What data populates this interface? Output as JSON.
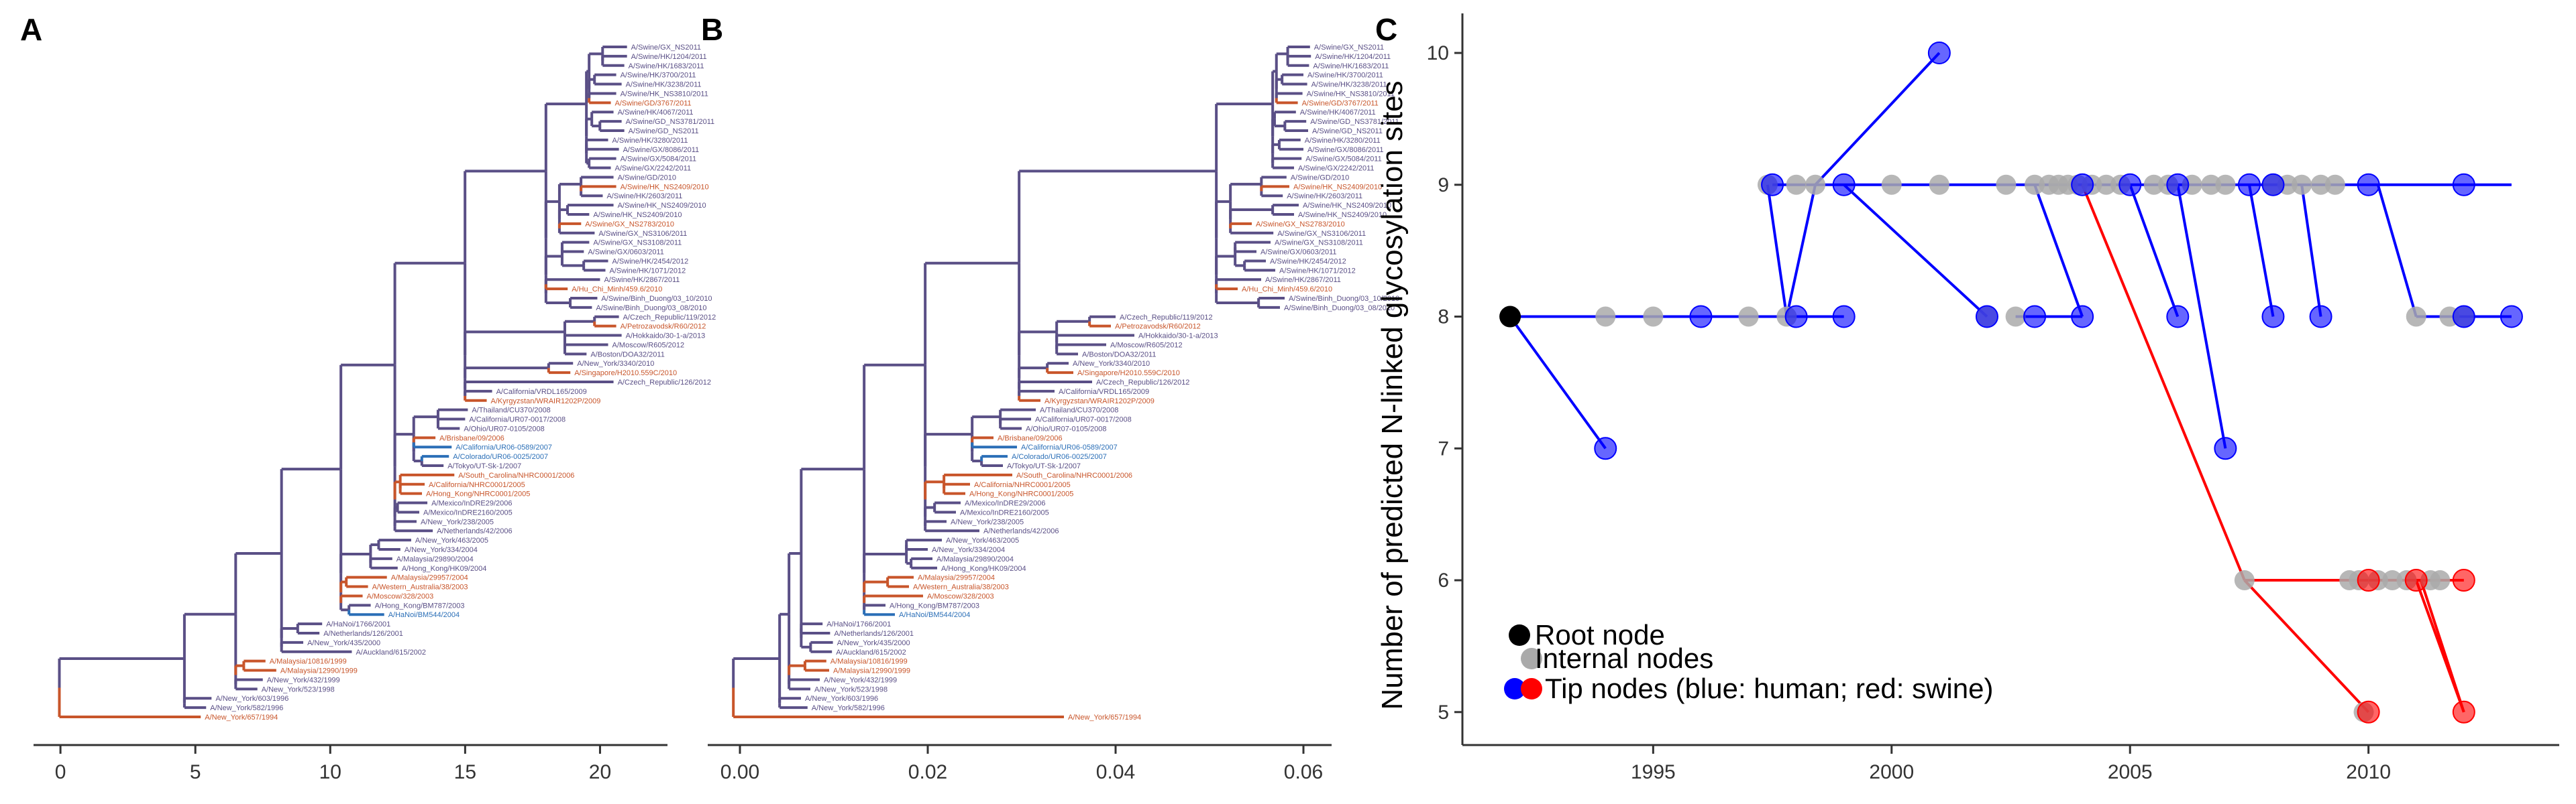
{
  "colors": {
    "orange": "#c8552a",
    "purple": "#5a4f86",
    "blue": "#2b6fb7",
    "root": "#000000",
    "internal": "#aaaaaa",
    "human": "#0000ff",
    "swine": "#ff0000",
    "edge_human": "#0000ff",
    "edge_swine": "#ff0000"
  },
  "panels": {
    "a": {
      "letter": "A",
      "x_ticks": [
        0,
        5,
        10,
        15,
        20
      ],
      "x_range": [
        -0.5,
        22.5
      ]
    },
    "b": {
      "letter": "B",
      "x_ticks": [
        "0.00",
        "0.02",
        "0.04",
        "0.06"
      ],
      "x_range": [
        -0.002,
        0.063
      ]
    },
    "c": {
      "letter": "C"
    }
  },
  "tree": {
    "tips": [
      {
        "label": "A/New_York/657/1994",
        "color": "orange",
        "a_x": 5.2,
        "b_x": 0.0345
      },
      {
        "label": "A/New_York/582/1996",
        "color": "purple",
        "a_x": 5.4,
        "b_x": 0.0072
      },
      {
        "label": "A/New_York/603/1996",
        "color": "purple",
        "a_x": 5.6,
        "b_x": 0.0065
      },
      {
        "label": "A/New_York/523/1998",
        "color": "purple",
        "a_x": 7.3,
        "b_x": 0.0075
      },
      {
        "label": "A/New_York/432/1999",
        "color": "purple",
        "a_x": 7.5,
        "b_x": 0.0085
      },
      {
        "label": "A/Malaysia/12990/1999",
        "color": "orange",
        "a_x": 8.0,
        "b_x": 0.0095
      },
      {
        "label": "A/Malaysia/10816/1999",
        "color": "orange",
        "a_x": 7.6,
        "b_x": 0.0092
      },
      {
        "label": "A/Auckland/615/2002",
        "color": "purple",
        "a_x": 10.8,
        "b_x": 0.0098
      },
      {
        "label": "A/New_York/435/2000",
        "color": "purple",
        "a_x": 9.0,
        "b_x": 0.0099
      },
      {
        "label": "A/Netherlands/126/2001",
        "color": "purple",
        "a_x": 9.6,
        "b_x": 0.0096
      },
      {
        "label": "A/HaNoi/1766/2001",
        "color": "purple",
        "a_x": 9.7,
        "b_x": 0.0088
      },
      {
        "label": "A/HaNoi/BM544/2004",
        "color": "blue",
        "a_x": 12.0,
        "b_x": 0.0165
      },
      {
        "label": "A/Hong_Kong/BM787/2003",
        "color": "purple",
        "a_x": 11.5,
        "b_x": 0.0155
      },
      {
        "label": "A/Moscow/328/2003",
        "color": "orange",
        "a_x": 11.2,
        "b_x": 0.0195
      },
      {
        "label": "A/Western_Australia/38/2003",
        "color": "orange",
        "a_x": 11.4,
        "b_x": 0.018
      },
      {
        "label": "A/Malaysia/29957/2004",
        "color": "orange",
        "a_x": 12.1,
        "b_x": 0.0185
      },
      {
        "label": "A/Hong_Kong/HK09/2004",
        "color": "purple",
        "a_x": 12.5,
        "b_x": 0.021
      },
      {
        "label": "A/Malaysia/29890/2004",
        "color": "purple",
        "a_x": 12.3,
        "b_x": 0.0205
      },
      {
        "label": "A/New_York/334/2004",
        "color": "purple",
        "a_x": 12.6,
        "b_x": 0.02
      },
      {
        "label": "A/New_York/463/2005",
        "color": "purple",
        "a_x": 13.0,
        "b_x": 0.0215
      },
      {
        "label": "A/Netherlands/42/2006",
        "color": "purple",
        "a_x": 13.8,
        "b_x": 0.0255
      },
      {
        "label": "A/New_York/238/2005",
        "color": "purple",
        "a_x": 13.2,
        "b_x": 0.022
      },
      {
        "label": "A/Mexico/InDRE2160/2005",
        "color": "purple",
        "a_x": 13.3,
        "b_x": 0.023
      },
      {
        "label": "A/Mexico/InDRE29/2006",
        "color": "purple",
        "a_x": 13.6,
        "b_x": 0.0235
      },
      {
        "label": "A/Hong_Kong/NHRC0001/2005",
        "color": "orange",
        "a_x": 13.4,
        "b_x": 0.024
      },
      {
        "label": "A/California/NHRC0001/2005",
        "color": "orange",
        "a_x": 13.5,
        "b_x": 0.0245
      },
      {
        "label": "A/South_Carolina/NHRC0001/2006",
        "color": "orange",
        "a_x": 14.6,
        "b_x": 0.029
      },
      {
        "label": "A/Tokyo/UT-Sk-1/2007",
        "color": "purple",
        "a_x": 14.2,
        "b_x": 0.028
      },
      {
        "label": "A/Colorado/UR06-0025/2007",
        "color": "blue",
        "a_x": 14.4,
        "b_x": 0.0285
      },
      {
        "label": "A/California/UR06-0589/2007",
        "color": "blue",
        "a_x": 14.5,
        "b_x": 0.0295
      },
      {
        "label": "A/Brisbane/09/2006",
        "color": "orange",
        "a_x": 13.9,
        "b_x": 0.027
      },
      {
        "label": "A/Ohio/UR07-0105/2008",
        "color": "purple",
        "a_x": 14.8,
        "b_x": 0.03
      },
      {
        "label": "A/California/UR07-0017/2008",
        "color": "purple",
        "a_x": 15.0,
        "b_x": 0.031
      },
      {
        "label": "A/Thailand/CU370/2008",
        "color": "purple",
        "a_x": 15.1,
        "b_x": 0.0315
      },
      {
        "label": "A/Kyrgyzstan/WRAIR1202P/2009",
        "color": "orange",
        "a_x": 15.8,
        "b_x": 0.032
      },
      {
        "label": "A/California/VRDL165/2009",
        "color": "purple",
        "a_x": 16.0,
        "b_x": 0.0335
      },
      {
        "label": "A/Czech_Republic/126/2012",
        "color": "purple",
        "a_x": 20.5,
        "b_x": 0.0375
      },
      {
        "label": "A/Singapore/H2010.559C/2010",
        "color": "orange",
        "a_x": 18.9,
        "b_x": 0.0355
      },
      {
        "label": "A/New_York/3340/2010",
        "color": "purple",
        "a_x": 19.0,
        "b_x": 0.035
      },
      {
        "label": "A/Boston/DOA32/2011",
        "color": "purple",
        "a_x": 19.5,
        "b_x": 0.036
      },
      {
        "label": "A/Moscow/R605/2012",
        "color": "purple",
        "a_x": 20.3,
        "b_x": 0.039
      },
      {
        "label": "A/Hokkaido/30-1-a/2013",
        "color": "purple",
        "a_x": 20.8,
        "b_x": 0.042
      },
      {
        "label": "A/Petrozavodsk/R60/2012",
        "color": "orange",
        "a_x": 20.6,
        "b_x": 0.0395
      },
      {
        "label": "A/Czech_Republic/119/2012",
        "color": "purple",
        "a_x": 20.7,
        "b_x": 0.04
      },
      {
        "label": "A/Swine/Binh_Duong/03_08/2010",
        "color": "purple",
        "a_x": 19.7,
        "b_x": 0.0575
      },
      {
        "label": "A/Swine/Binh_Duong/03_10/2010",
        "color": "purple",
        "a_x": 19.9,
        "b_x": 0.058
      },
      {
        "label": "A/Hu_Chi_Minh/459.6/2010",
        "color": "orange",
        "a_x": 18.8,
        "b_x": 0.053
      },
      {
        "label": "A/Swine/HK/2867/2011",
        "color": "purple",
        "a_x": 20.0,
        "b_x": 0.0555
      },
      {
        "label": "A/Swine/HK/1071/2012",
        "color": "purple",
        "a_x": 20.2,
        "b_x": 0.057
      },
      {
        "label": "A/Swine/HK/2454/2012",
        "color": "purple",
        "a_x": 20.3,
        "b_x": 0.056
      },
      {
        "label": "A/Swine/GX/0603/2011",
        "color": "purple",
        "a_x": 19.4,
        "b_x": 0.055
      },
      {
        "label": "A/Swine/GX_NS3108/2011",
        "color": "purple",
        "a_x": 19.6,
        "b_x": 0.0565
      },
      {
        "label": "A/Swine/GX_NS3106/2011",
        "color": "purple",
        "a_x": 19.8,
        "b_x": 0.0568
      },
      {
        "label": "A/Swine/GX_NS2783/2010",
        "color": "orange",
        "a_x": 19.3,
        "b_x": 0.0545
      },
      {
        "label": "A/Swine/HK_NS2409/2010",
        "color": "purple",
        "a_x": 19.6,
        "b_x": 0.059
      },
      {
        "label": "A/Swine/HK_NS2409/2010",
        "color": "purple",
        "a_x": 20.5,
        "b_x": 0.0595
      },
      {
        "label": "A/Swine/HK/2603/2011",
        "color": "purple",
        "a_x": 20.1,
        "b_x": 0.0578
      },
      {
        "label": "A/Swine/HK_NS2409/2010",
        "color": "orange",
        "a_x": 20.6,
        "b_x": 0.0585
      },
      {
        "label": "A/Swine/GD/2010",
        "color": "purple",
        "a_x": 20.5,
        "b_x": 0.0582
      },
      {
        "label": "A/Swine/GX/2242/2011",
        "color": "purple",
        "a_x": 20.4,
        "b_x": 0.059
      },
      {
        "label": "A/Swine/GX/5084/2011",
        "color": "purple",
        "a_x": 20.6,
        "b_x": 0.0598
      },
      {
        "label": "A/Swine/GX/8086/2011",
        "color": "purple",
        "a_x": 20.7,
        "b_x": 0.06
      },
      {
        "label": "A/Swine/HK/3280/2011",
        "color": "purple",
        "a_x": 20.3,
        "b_x": 0.0597
      },
      {
        "label": "A/Swine/GD_NS2011",
        "color": "purple",
        "a_x": 20.9,
        "b_x": 0.0605
      },
      {
        "label": "A/Swine/GD_NS3781/2011",
        "color": "purple",
        "a_x": 20.8,
        "b_x": 0.0603
      },
      {
        "label": "A/Swine/HK/4067/2011",
        "color": "purple",
        "a_x": 20.5,
        "b_x": 0.0592
      },
      {
        "label": "A/Swine/GD/3767/2011",
        "color": "orange",
        "a_x": 20.4,
        "b_x": 0.0594
      },
      {
        "label": "A/Swine/HK_NS3810/2011",
        "color": "purple",
        "a_x": 20.6,
        "b_x": 0.0599
      },
      {
        "label": "A/Swine/HK/3238/2011",
        "color": "purple",
        "a_x": 20.8,
        "b_x": 0.0604
      },
      {
        "label": "A/Swine/HK/3700/2011",
        "color": "purple",
        "a_x": 20.6,
        "b_x": 0.06
      },
      {
        "label": "A/Swine/HK/1683/2011",
        "color": "purple",
        "a_x": 20.9,
        "b_x": 0.0606
      },
      {
        "label": "A/Swine/HK/1204/2011",
        "color": "purple",
        "a_x": 21.0,
        "b_x": 0.0608
      },
      {
        "label": "A/Swine/GX_NS2011",
        "color": "purple",
        "a_x": 21.0,
        "b_x": 0.0607
      }
    ]
  },
  "chart_data": [
    {
      "type": "tree",
      "panel": "A",
      "x_ticks": [
        0,
        5,
        10,
        15,
        20
      ]
    },
    {
      "type": "tree",
      "panel": "B",
      "x_ticks": [
        0.0,
        0.02,
        0.04,
        0.06
      ]
    },
    {
      "type": "scatter",
      "panel": "C",
      "ylabel": "Number of predicted N-linked glycosylation sites",
      "xlabel": "",
      "xlim": [
        1991.0,
        2014.0
      ],
      "ylim": [
        4.75,
        10.3
      ],
      "x_ticks": [
        1995,
        2000,
        2005,
        2010
      ],
      "y_ticks": [
        5,
        6,
        7,
        8,
        9,
        10
      ],
      "grid": false,
      "legend_placement": "bottom-left",
      "legend": [
        {
          "label": "Root node",
          "kind": "root"
        },
        {
          "label": "Internal nodes",
          "kind": "internal"
        },
        {
          "label": "Tip nodes (blue: human; red: swine)",
          "kind": "tip"
        }
      ],
      "root": {
        "x": 1992.0,
        "y": 8
      },
      "internal_nodes": [
        {
          "x": 1994.0,
          "y": 8
        },
        {
          "x": 1995.0,
          "y": 8
        },
        {
          "x": 1997.0,
          "y": 8
        },
        {
          "x": 1997.4,
          "y": 9
        },
        {
          "x": 1997.8,
          "y": 8
        },
        {
          "x": 1998.0,
          "y": 9
        },
        {
          "x": 1998.4,
          "y": 9
        },
        {
          "x": 2000.0,
          "y": 9
        },
        {
          "x": 2001.0,
          "y": 9
        },
        {
          "x": 2002.0,
          "y": 8
        },
        {
          "x": 2002.4,
          "y": 9
        },
        {
          "x": 2002.6,
          "y": 8
        },
        {
          "x": 2003.0,
          "y": 9
        },
        {
          "x": 2003.3,
          "y": 9
        },
        {
          "x": 2003.5,
          "y": 9
        },
        {
          "x": 2003.7,
          "y": 9
        },
        {
          "x": 2003.9,
          "y": 9
        },
        {
          "x": 2004.2,
          "y": 9
        },
        {
          "x": 2004.5,
          "y": 9
        },
        {
          "x": 2004.8,
          "y": 9
        },
        {
          "x": 2005.5,
          "y": 9
        },
        {
          "x": 2005.8,
          "y": 9
        },
        {
          "x": 2006.3,
          "y": 9
        },
        {
          "x": 2006.7,
          "y": 9
        },
        {
          "x": 2007.0,
          "y": 9
        },
        {
          "x": 2007.4,
          "y": 6
        },
        {
          "x": 2008.0,
          "y": 9
        },
        {
          "x": 2008.3,
          "y": 9
        },
        {
          "x": 2008.6,
          "y": 9
        },
        {
          "x": 2009.0,
          "y": 9
        },
        {
          "x": 2009.3,
          "y": 9
        },
        {
          "x": 2009.6,
          "y": 6
        },
        {
          "x": 2009.8,
          "y": 6
        },
        {
          "x": 2009.9,
          "y": 5
        },
        {
          "x": 2010.2,
          "y": 6
        },
        {
          "x": 2010.5,
          "y": 6
        },
        {
          "x": 2010.8,
          "y": 6
        },
        {
          "x": 2011.0,
          "y": 8
        },
        {
          "x": 2011.3,
          "y": 6
        },
        {
          "x": 2011.5,
          "y": 6
        },
        {
          "x": 2011.7,
          "y": 8
        },
        {
          "x": 2012.0,
          "y": 8
        }
      ],
      "tip_nodes": [
        {
          "x": 1994.0,
          "y": 7,
          "host": "human"
        },
        {
          "x": 1996.0,
          "y": 8,
          "host": "human"
        },
        {
          "x": 1998.0,
          "y": 8,
          "host": "human"
        },
        {
          "x": 1999.0,
          "y": 8,
          "host": "human"
        },
        {
          "x": 1997.5,
          "y": 9,
          "host": "human"
        },
        {
          "x": 1999.0,
          "y": 9,
          "host": "human"
        },
        {
          "x": 2001.0,
          "y": 10,
          "host": "human"
        },
        {
          "x": 2002.0,
          "y": 8,
          "host": "human"
        },
        {
          "x": 2003.0,
          "y": 8,
          "host": "human"
        },
        {
          "x": 2004.0,
          "y": 8,
          "host": "human"
        },
        {
          "x": 2004.0,
          "y": 9,
          "host": "human"
        },
        {
          "x": 2005.0,
          "y": 9,
          "host": "human"
        },
        {
          "x": 2006.0,
          "y": 9,
          "host": "human"
        },
        {
          "x": 2006.0,
          "y": 8,
          "host": "human"
        },
        {
          "x": 2007.0,
          "y": 7,
          "host": "human"
        },
        {
          "x": 2007.5,
          "y": 9,
          "host": "human"
        },
        {
          "x": 2008.0,
          "y": 9,
          "host": "human"
        },
        {
          "x": 2008.0,
          "y": 8,
          "host": "human"
        },
        {
          "x": 2009.0,
          "y": 8,
          "host": "human"
        },
        {
          "x": 2010.0,
          "y": 9,
          "host": "human"
        },
        {
          "x": 2012.0,
          "y": 9,
          "host": "human"
        },
        {
          "x": 2012.0,
          "y": 8,
          "host": "human"
        },
        {
          "x": 2013.0,
          "y": 8,
          "host": "human"
        },
        {
          "x": 2010.0,
          "y": 6,
          "host": "swine"
        },
        {
          "x": 2011.0,
          "y": 6,
          "host": "swine"
        },
        {
          "x": 2012.0,
          "y": 6,
          "host": "swine"
        },
        {
          "x": 2010.0,
          "y": 5,
          "host": "swine"
        },
        {
          "x": 2012.0,
          "y": 5,
          "host": "swine"
        }
      ],
      "edges": [
        {
          "from": [
            1992.0,
            8
          ],
          "to": [
            1994.0,
            7
          ],
          "host": "human"
        },
        {
          "from": [
            1992.0,
            8
          ],
          "to": [
            1999.0,
            8
          ],
          "host": "human"
        },
        {
          "from": [
            1997.8,
            8
          ],
          "to": [
            1998.4,
            9
          ],
          "host": "human"
        },
        {
          "from": [
            1997.4,
            9
          ],
          "to": [
            1997.8,
            8
          ],
          "host": "human"
        },
        {
          "from": [
            1998.4,
            9
          ],
          "to": [
            2001.0,
            10
          ],
          "host": "human"
        },
        {
          "from": [
            1997.5,
            9
          ],
          "to": [
            2013.0,
            9
          ],
          "host": "human"
        },
        {
          "from": [
            1999.0,
            9
          ],
          "to": [
            2002.0,
            8
          ],
          "host": "human"
        },
        {
          "from": [
            2003.0,
            9
          ],
          "to": [
            2004.0,
            8
          ],
          "host": "human"
        },
        {
          "from": [
            2002.6,
            8
          ],
          "to": [
            2004.0,
            8
          ],
          "host": "human"
        },
        {
          "from": [
            2005.0,
            9
          ],
          "to": [
            2006.0,
            8
          ],
          "host": "human"
        },
        {
          "from": [
            2006.0,
            9
          ],
          "to": [
            2007.0,
            7
          ],
          "host": "human"
        },
        {
          "from": [
            2007.5,
            9
          ],
          "to": [
            2008.0,
            8
          ],
          "host": "human"
        },
        {
          "from": [
            2008.6,
            9
          ],
          "to": [
            2009.0,
            8
          ],
          "host": "human"
        },
        {
          "from": [
            2010.2,
            9
          ],
          "to": [
            2011.0,
            8
          ],
          "host": "human"
        },
        {
          "from": [
            2011.0,
            8
          ],
          "to": [
            2013.0,
            8
          ],
          "host": "human"
        },
        {
          "from": [
            2004.0,
            9
          ],
          "to": [
            2007.4,
            6
          ],
          "host": "swine"
        },
        {
          "from": [
            2007.4,
            6
          ],
          "to": [
            2012.0,
            6
          ],
          "host": "swine"
        },
        {
          "from": [
            2007.4,
            6
          ],
          "to": [
            2010.0,
            5
          ],
          "host": "swine"
        },
        {
          "from": [
            2011.0,
            6
          ],
          "to": [
            2012.0,
            5
          ],
          "host": "swine"
        },
        {
          "from": [
            2011.1,
            6
          ],
          "to": [
            2012.0,
            5
          ],
          "host": "swine"
        }
      ]
    }
  ]
}
